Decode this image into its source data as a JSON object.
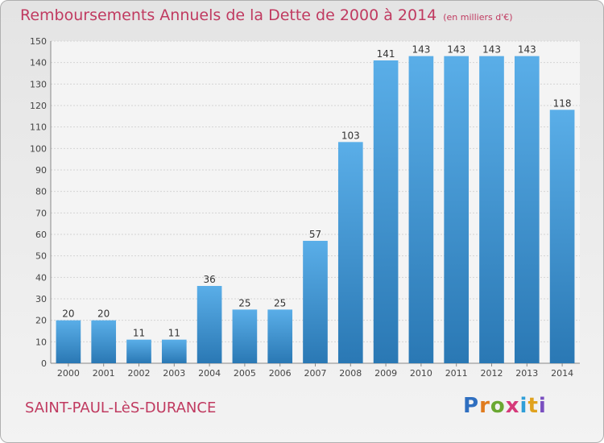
{
  "chart_data": {
    "type": "bar",
    "title": "Remboursements Annuels de la Dette de 2000 à 2014",
    "subtitle": "(en milliers d'€)",
    "categories": [
      "2000",
      "2001",
      "2002",
      "2003",
      "2004",
      "2005",
      "2006",
      "2007",
      "2008",
      "2009",
      "2010",
      "2011",
      "2012",
      "2013",
      "2014"
    ],
    "values": [
      20,
      20,
      11,
      11,
      36,
      25,
      25,
      57,
      103,
      141,
      143,
      143,
      143,
      143,
      118
    ],
    "ylim": [
      0,
      150
    ],
    "yticks": [
      0,
      10,
      20,
      30,
      40,
      50,
      60,
      70,
      80,
      90,
      100,
      110,
      120,
      130,
      140,
      150
    ],
    "grid": true,
    "xlabel": "",
    "ylabel": "",
    "bar_color_top": "#5aaee8",
    "bar_color_bottom": "#2a78b4"
  },
  "footer": {
    "city": "SAINT-PAUL-LèS-DURANCE",
    "logo_letters": [
      "P",
      "r",
      "o",
      "x",
      "i",
      "t",
      "i"
    ],
    "logo_colors": [
      "#2f6fc0",
      "#e07b1e",
      "#6aa832",
      "#d63a7a",
      "#2f9fd8",
      "#e0a21e",
      "#7a4fc0"
    ]
  }
}
